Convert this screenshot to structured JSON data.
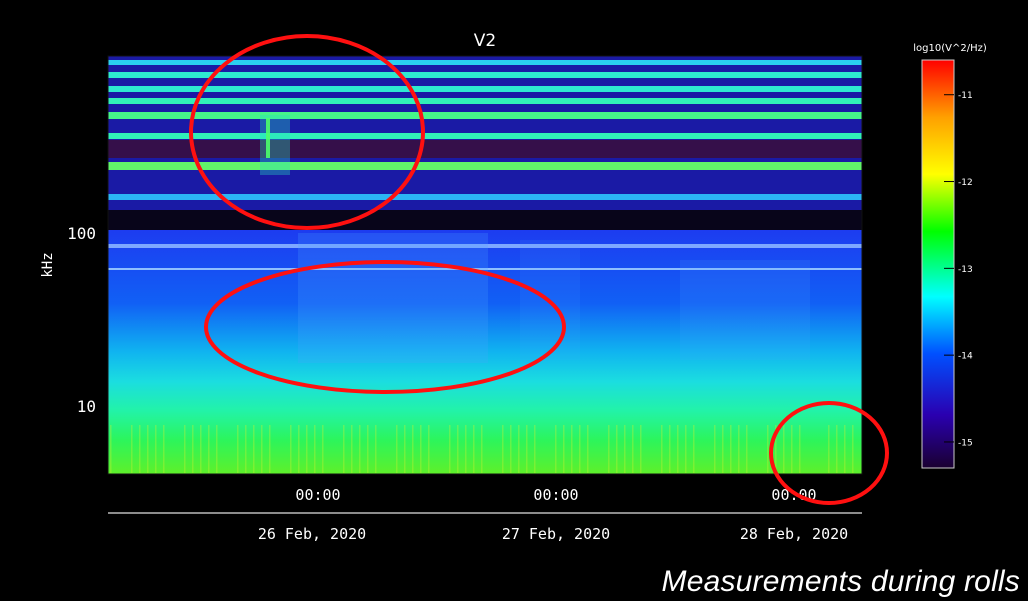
{
  "caption": "Measurements during rolls",
  "chart_data": {
    "type": "heatmap",
    "title": "V2",
    "ylabel": "kHz",
    "yscale": "log",
    "ylim": [
      4.3,
      860
    ],
    "yticks": [
      {
        "label": "100",
        "value": 100
      },
      {
        "label": "10",
        "value": 10
      }
    ],
    "xticks": [
      {
        "label": "00:00",
        "date": "26 Feb, 2020"
      },
      {
        "label": "00:00",
        "date": "27 Feb, 2020"
      },
      {
        "label": "00:00",
        "date": "28 Feb, 2020"
      }
    ],
    "xrange": [
      "25 Feb, 2020 ~06:30",
      "28 Feb, 2020 ~03:00"
    ],
    "colorbar": {
      "label": "log10(V^2/Hz)",
      "min": -15.3,
      "max": -10.6,
      "ticks": [
        "-11",
        "-12",
        "-13",
        "-14",
        "-15"
      ],
      "colors": [
        "#ff0000",
        "#ffa000",
        "#ffff00",
        "#00ff00",
        "#00ffff",
        "#0050ff",
        "#2a00b0",
        "#1a0030"
      ]
    },
    "annotations": [
      {
        "shape": "ellipse",
        "color": "#ff0000",
        "region": "upper-left, high-frequency band ~200-800 kHz, 25-26 Feb"
      },
      {
        "shape": "ellipse",
        "color": "#ff0000",
        "region": "middle-left, ~15-60 kHz, 26 Feb"
      },
      {
        "shape": "ellipse",
        "color": "#ff0000",
        "region": "lower-right, ~5-10 kHz, 28 Feb"
      }
    ]
  }
}
